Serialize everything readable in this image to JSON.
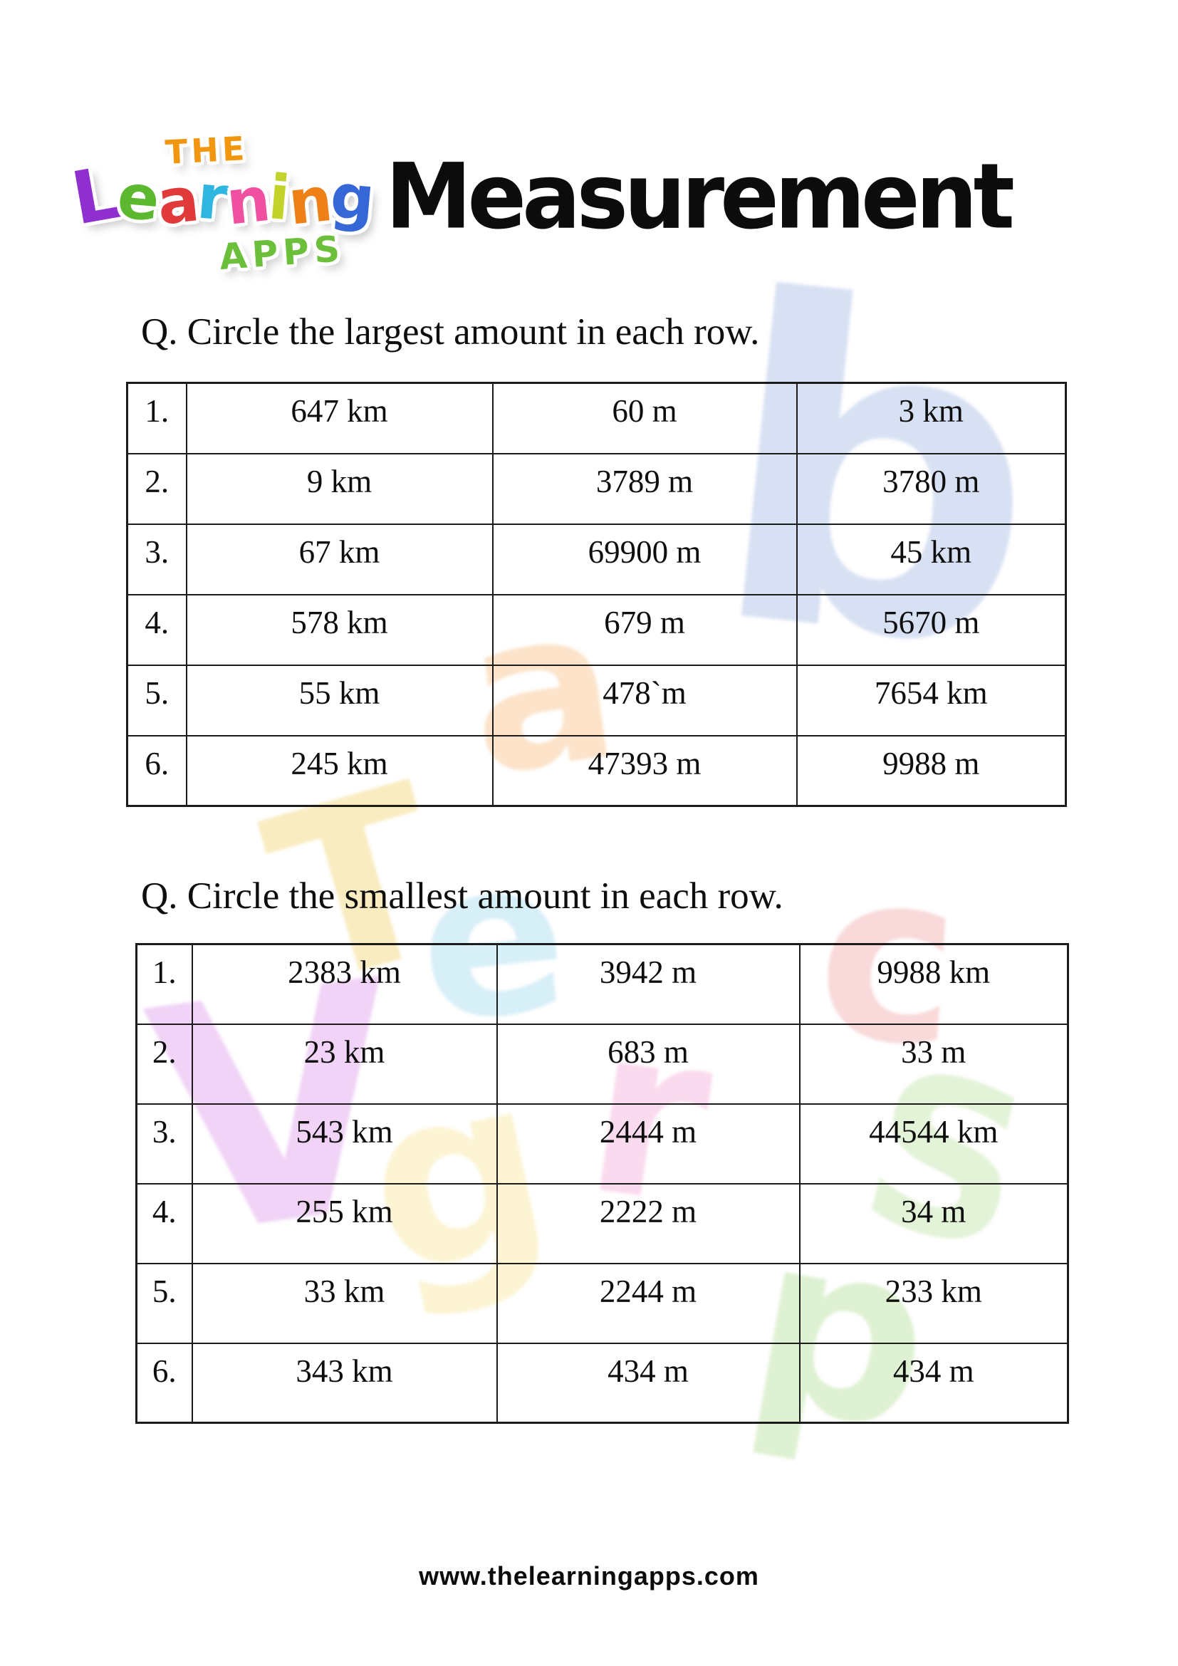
{
  "brand": {
    "the": "THE",
    "the_color": "#f2960f",
    "learning_letters": [
      {
        "ch": "L",
        "color": "#8f2fd0"
      },
      {
        "ch": "e",
        "color": "#5cb82e"
      },
      {
        "ch": "a",
        "color": "#e03a3a"
      },
      {
        "ch": "r",
        "color": "#2fb6e0"
      },
      {
        "ch": "n",
        "color": "#f050a0"
      },
      {
        "ch": "i",
        "color": "#c3d32b"
      },
      {
        "ch": "n",
        "color": "#ef8018"
      },
      {
        "ch": "g",
        "color": "#3567d6"
      }
    ],
    "apps": "APPS",
    "apps_color": "#6cbf3a"
  },
  "page_title": "Measurement",
  "questions": [
    {
      "prompt": "Q. Circle the largest amount in each row.",
      "rows": [
        {
          "num": "1.",
          "values": [
            "647 km",
            "60 m",
            "3 km"
          ]
        },
        {
          "num": "2.",
          "values": [
            "9 km",
            "3789 m",
            "3780 m"
          ]
        },
        {
          "num": "3.",
          "values": [
            "67 km",
            "69900 m",
            "45 km"
          ]
        },
        {
          "num": "4.",
          "values": [
            "578 km",
            "679 m",
            "5670 m"
          ]
        },
        {
          "num": "5.",
          "values": [
            "55 km",
            "478`m",
            "7654 km"
          ]
        },
        {
          "num": "6.",
          "values": [
            "245 km",
            "47393 m",
            "9988 m"
          ]
        }
      ]
    },
    {
      "prompt": "Q. Circle the smallest amount in each row.",
      "rows": [
        {
          "num": "1.",
          "values": [
            "2383 km",
            "3942 m",
            "9988 km"
          ]
        },
        {
          "num": "2.",
          "values": [
            "23 km",
            "683 m",
            "33 m"
          ]
        },
        {
          "num": "3.",
          "values": [
            "543 km",
            "2444 m",
            "44544 km"
          ]
        },
        {
          "num": "4.",
          "values": [
            "255 km",
            "2222 m",
            "34 m"
          ]
        },
        {
          "num": "5.",
          "values": [
            "33 km",
            "2244 m",
            "233 km"
          ]
        },
        {
          "num": "6.",
          "values": [
            "343 km",
            "434 m",
            "434 m"
          ]
        }
      ]
    }
  ],
  "footer": {
    "url_text": "www.thelearningapps.com"
  },
  "watermark": {
    "glyphs": [
      {
        "ch": "b",
        "color": "rgba(125,155,215,0.30)"
      },
      {
        "ch": "S",
        "color": "rgba(175,220,140,0.35)"
      },
      {
        "ch": "p",
        "color": "rgba(160,215,125,0.35)"
      },
      {
        "ch": "a",
        "color": "rgba(245,175,100,0.35)"
      },
      {
        "ch": "T",
        "color": "rgba(240,205,90,0.38)"
      },
      {
        "ch": "e",
        "color": "rgba(130,205,230,0.32)"
      },
      {
        "ch": "c",
        "color": "rgba(235,130,130,0.30)"
      },
      {
        "ch": "V",
        "color": "rgba(205,110,225,0.30)"
      },
      {
        "ch": "g",
        "color": "rgba(248,225,140,0.38)"
      },
      {
        "ch": "r",
        "color": "rgba(240,150,205,0.35)"
      }
    ]
  }
}
